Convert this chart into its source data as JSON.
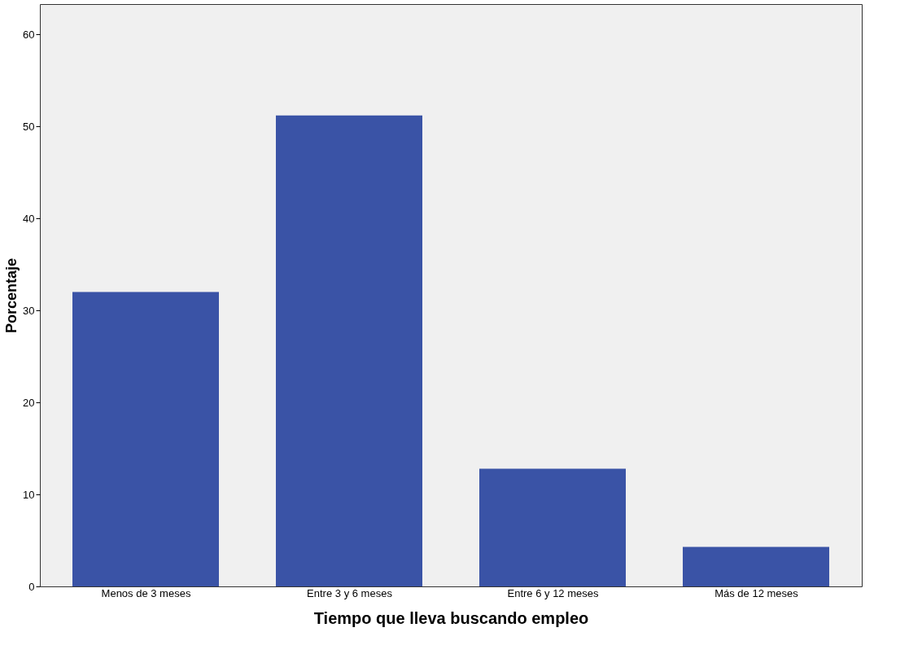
{
  "chart_data": {
    "type": "bar",
    "xlabel": "Tiempo que lleva buscando empleo",
    "ylabel": "Porcentaje",
    "categories": [
      "Menos de 3 meses",
      "Entre 3 y 6 meses",
      "Entre 6 y 12 meses",
      "Más de 12 meses"
    ],
    "values": [
      32.0,
      51.2,
      12.8,
      4.3
    ],
    "color": "#3a53a6",
    "ylim": [
      0,
      63.3
    ],
    "yticks": [
      0,
      10,
      20,
      30,
      40,
      50,
      60
    ],
    "grid": false
  }
}
